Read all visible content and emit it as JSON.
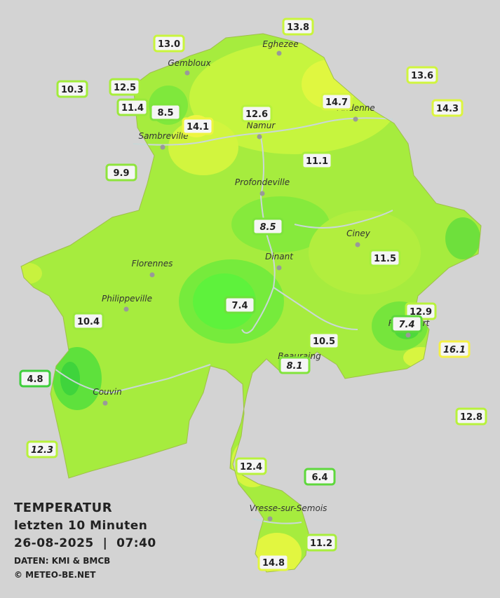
{
  "map": {
    "cities": [
      "Eghezee",
      "Gembloux",
      "Andenne",
      "Namur",
      "Sambreville",
      "Profondeville",
      "Ciney",
      "Dinant",
      "Florennes",
      "Philippeville",
      "Rochefort",
      "Beauraing",
      "Couvin",
      "Vresse-sur-Semois"
    ],
    "stations": [
      "13.8",
      "13.0",
      "12.5",
      "10.3",
      "11.4",
      "8.5",
      "12.6",
      "14.1",
      "14.7",
      "13.6",
      "14.3",
      "9.9",
      "11.1",
      "8.5",
      "11.5",
      "7.4",
      "12.9",
      "7.4",
      "10.4",
      "10.5",
      "8.1",
      "16.1",
      "4.8",
      "12.8",
      "12.3",
      "12.4",
      "6.4",
      "11.2",
      "14.8"
    ],
    "title_lines": [
      "TEMPERATUR",
      "letzten 10 Minuten",
      "26-08-2025  |  07:40"
    ],
    "credits": [
      "DATEN: KMI & BMCB",
      "© METEO-BE.NET"
    ]
  }
}
